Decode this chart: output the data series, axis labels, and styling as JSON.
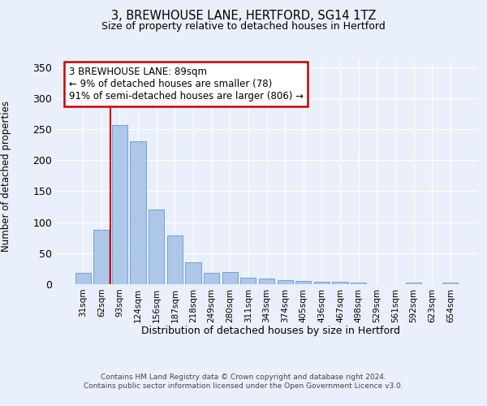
{
  "title1": "3, BREWHOUSE LANE, HERTFORD, SG14 1TZ",
  "title2": "Size of property relative to detached houses in Hertford",
  "xlabel": "Distribution of detached houses by size in Hertford",
  "ylabel": "Number of detached properties",
  "categories": [
    "31sqm",
    "62sqm",
    "93sqm",
    "124sqm",
    "156sqm",
    "187sqm",
    "218sqm",
    "249sqm",
    "280sqm",
    "311sqm",
    "343sqm",
    "374sqm",
    "405sqm",
    "436sqm",
    "467sqm",
    "498sqm",
    "529sqm",
    "561sqm",
    "592sqm",
    "623sqm",
    "654sqm"
  ],
  "values": [
    18,
    88,
    257,
    230,
    120,
    79,
    35,
    18,
    19,
    10,
    9,
    7,
    5,
    4,
    4,
    3,
    0,
    0,
    2,
    0,
    2
  ],
  "bar_color": "#aec6e8",
  "bar_edge_color": "#5b9bd5",
  "annotation_text": "3 BREWHOUSE LANE: 89sqm\n← 9% of detached houses are smaller (78)\n91% of semi-detached houses are larger (806) →",
  "annotation_box_edge_color": "#cc0000",
  "vline_color": "#cc0000",
  "bg_color": "#eaf0fb",
  "plot_bg_color": "#eaf0fb",
  "grid_color": "#ffffff",
  "footer": "Contains HM Land Registry data © Crown copyright and database right 2024.\nContains public sector information licensed under the Open Government Licence v3.0.",
  "ylim": [
    0,
    360
  ],
  "yticks": [
    0,
    50,
    100,
    150,
    200,
    250,
    300,
    350
  ]
}
